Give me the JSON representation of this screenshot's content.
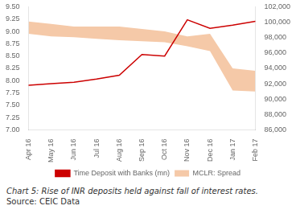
{
  "chart_data": {
    "type": "line",
    "categories": [
      "Apr 16",
      "May 16",
      "Jun 16",
      "Jul 16",
      "Aug 16",
      "Sep 16",
      "Oct 16",
      "Nov 16",
      "Dec 16",
      "Jan 17",
      "Feb 17"
    ],
    "series": [
      {
        "name": "MCLR: Spread",
        "type": "area",
        "color": "#f5c9a8",
        "upper": [
          9.2,
          9.15,
          9.1,
          9.1,
          9.1,
          9.05,
          9.0,
          8.9,
          8.95,
          8.25,
          8.2
        ],
        "lower": [
          8.95,
          8.9,
          8.88,
          8.85,
          8.82,
          8.8,
          8.78,
          8.7,
          8.6,
          7.8,
          7.78
        ]
      },
      {
        "name": "Time Deposit with Banks (mn)",
        "type": "line",
        "color": "#cc0000",
        "axis": "y2",
        "values": [
          91800,
          92000,
          92200,
          92600,
          93100,
          95800,
          95600,
          100300,
          99200,
          99600,
          100100
        ]
      }
    ],
    "ylim": [
      7.0,
      9.5
    ],
    "yticks": [
      {
        "value": 7.0,
        "label": "7.00"
      },
      7.25,
      {
        "value": 7.5,
        "label": "7.50"
      },
      7.75,
      {
        "value": 8.0,
        "label": "8.00"
      },
      8.25,
      {
        "value": 8.5,
        "label": "8.50"
      },
      8.75,
      {
        "value": 9.0,
        "label": "9.00"
      },
      9.25,
      {
        "value": 9.5,
        "label": "9.50"
      }
    ],
    "y2lim": [
      86000,
      102000
    ],
    "y2ticks": [
      {
        "value": 86000,
        "label": "86,000"
      },
      {
        "value": 88000,
        "label": "88,000"
      },
      {
        "value": 90000,
        "label": "90,000"
      },
      {
        "value": 92000,
        "label": "92,000"
      },
      {
        "value": 94000,
        "label": "94,000"
      },
      {
        "value": 96000,
        "label": "96,000"
      },
      {
        "value": 98000,
        "label": "98,000"
      },
      {
        "value": 100000,
        "label": "100,000"
      },
      {
        "value": 102000,
        "label": "102,000"
      }
    ],
    "grid": false,
    "legend": "bottom",
    "caption": "Chart 5: Rise of INR deposits held against fall of interest rates.",
    "source": "Source: CEIC Data"
  }
}
